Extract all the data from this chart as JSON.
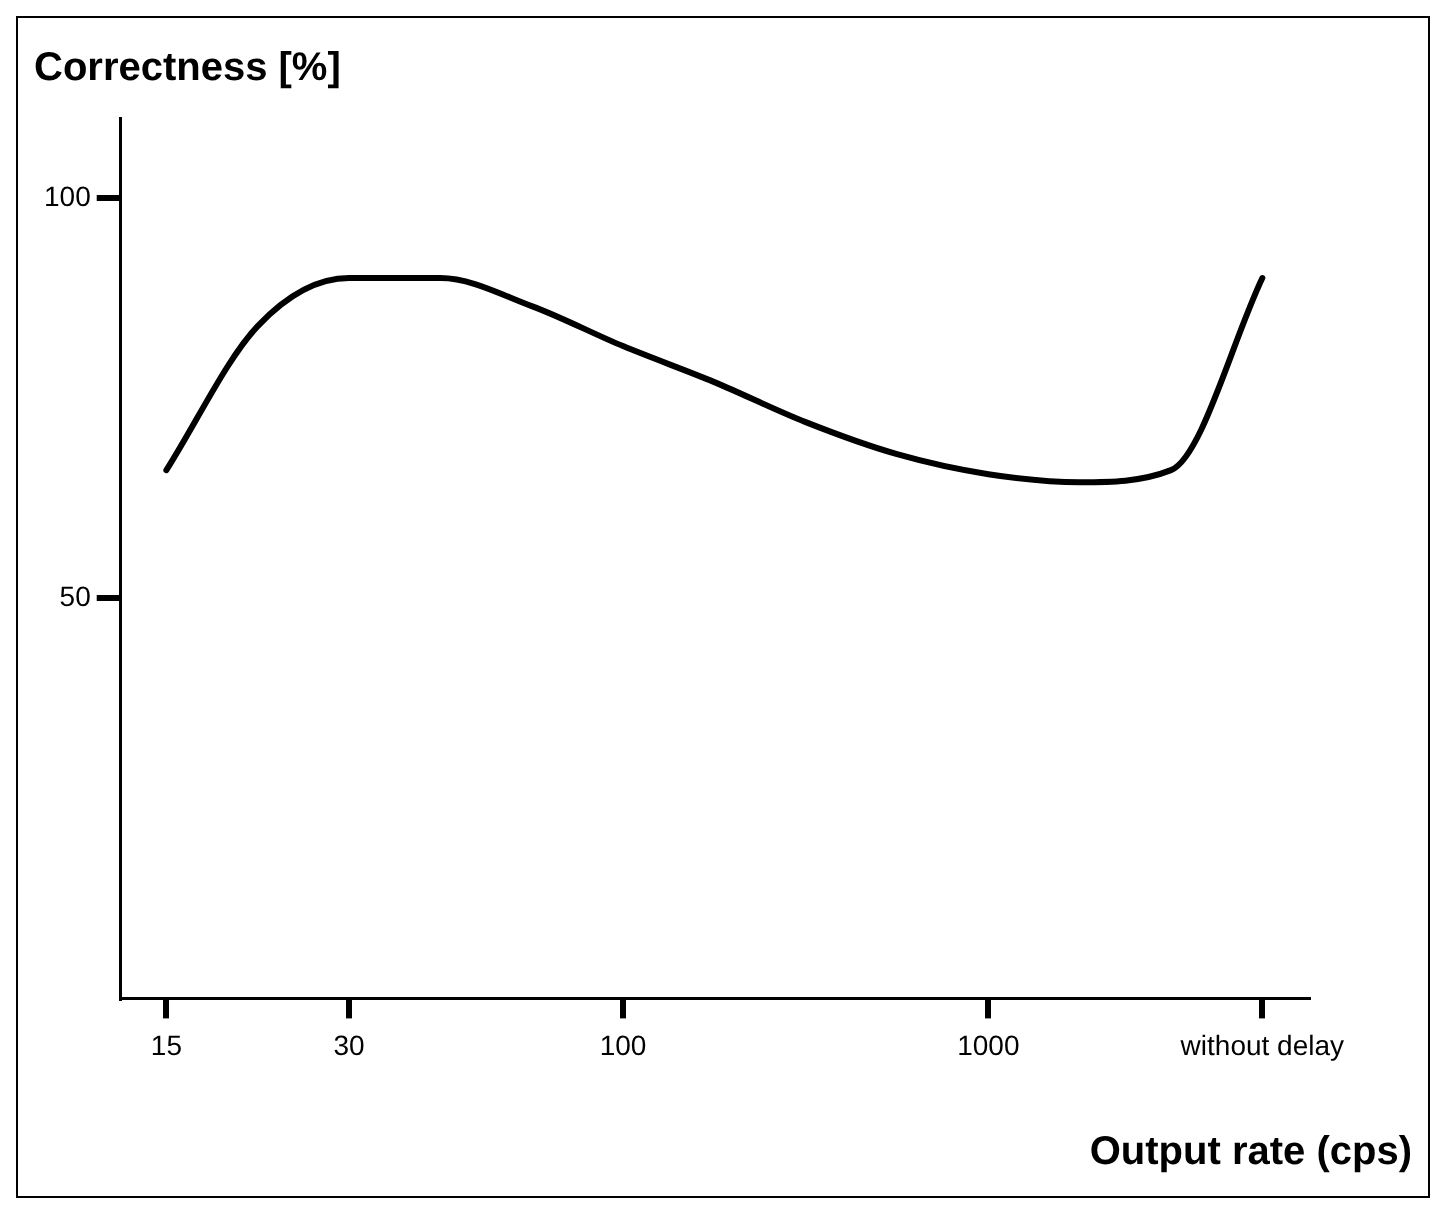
{
  "chart_data": {
    "type": "line",
    "xlabel": "Output rate (cps)",
    "ylabel": "Correctness [%]",
    "categories": [
      "15",
      null,
      "30",
      null,
      null,
      "100",
      null,
      null,
      null,
      "1000",
      null,
      null,
      "without delay"
    ],
    "series": [
      {
        "color": "#000000",
        "values": [
          66,
          84,
          90,
          90,
          86.5,
          81.5,
          77,
          72,
          68,
          65.5,
          64.5,
          66,
          90
        ]
      }
    ],
    "ylim": [
      0,
      110
    ],
    "yticks": [
      50,
      100
    ],
    "grid": false,
    "legend": false,
    "marker": "none",
    "line_style": "solid"
  }
}
